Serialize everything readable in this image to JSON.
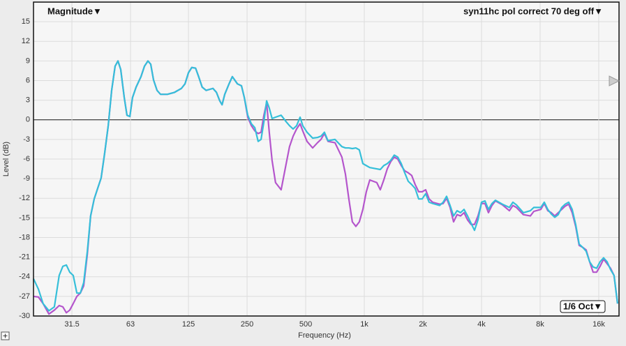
{
  "chart_data": {
    "type": "line",
    "mode_label": "Magnitude▼",
    "measurement_label": "syn11hc pol correct 70 deg off▼",
    "smoothing_label": "1/6 Oct▼",
    "x_label": "Frequency (Hz)",
    "y_label": "Level (dB)",
    "log_x": true,
    "grid": true,
    "xlim": [
      20,
      20000
    ],
    "ylim": [
      -30,
      18
    ],
    "xticks": [
      31.5,
      63,
      125,
      250,
      500,
      {
        "value": 1000,
        "label": "1k"
      },
      {
        "value": 2000,
        "label": "2k"
      },
      {
        "value": 4000,
        "label": "4k"
      },
      {
        "value": 8000,
        "label": "8k"
      },
      {
        "value": 16000,
        "label": "16k"
      }
    ],
    "yticks": [
      15,
      12,
      9,
      6,
      3,
      0,
      -3,
      -6,
      -9,
      -12,
      -15,
      -18,
      -21,
      -24,
      -27,
      -30
    ],
    "x": [
      20,
      21.2,
      22.4,
      24,
      25.6,
      27.1,
      28.3,
      29.5,
      30.7,
      32,
      33.4,
      34.8,
      36.2,
      37.8,
      39.3,
      41,
      42.7,
      44.5,
      46.4,
      48.4,
      50.4,
      52.5,
      54.3,
      56.1,
      58.5,
      60.4,
      62.5,
      64.5,
      67.3,
      71.3,
      74.3,
      77.4,
      80,
      82.7,
      86.2,
      89.8,
      97.5,
      106,
      115,
      120,
      125,
      130,
      136,
      141,
      147,
      154,
      167,
      174,
      181,
      186,
      192,
      202,
      210,
      223,
      234,
      242,
      252,
      263,
      274,
      285,
      295,
      305,
      315,
      325,
      336,
      350,
      374,
      397,
      413,
      431,
      449,
      468,
      483,
      508,
      543,
      575,
      599,
      624,
      651,
      707,
      767,
      800,
      833,
      868,
      905,
      943,
      983,
      1024,
      1067,
      1159,
      1208,
      1259,
      1312,
      1367,
      1425,
      1485,
      1548,
      1613,
      1681,
      1751,
      1825,
      1902,
      1982,
      2066,
      2152,
      2244,
      2437,
      2540,
      2646,
      2758,
      2874,
      2995,
      3121,
      3253,
      3390,
      3532,
      3681,
      3836,
      3998,
      4166,
      4341,
      4524,
      4715,
      5120,
      5561,
      5796,
      6040,
      6560,
      7125,
      7425,
      8063,
      8402,
      8756,
      9125,
      9509,
      9908,
      10325,
      10760,
      11213,
      11686,
      12177,
      12691,
      13226,
      13783,
      14363,
      14968,
      15599,
      16255,
      16939,
      17653,
      18397,
      19172,
      19980
    ],
    "series": [
      {
        "color": "#b455cc",
        "values": [
          -27.0,
          -27.1,
          -28.1,
          -29.7,
          -29.1,
          -28.4,
          -28.6,
          -29.5,
          -29.1,
          -28.1,
          -27.0,
          -26.5,
          -25.4,
          -20.6,
          -14.7,
          -12.1,
          -10.5,
          -8.9,
          -5.1,
          -0.9,
          4.5,
          8.2,
          9.0,
          7.7,
          3.4,
          0.7,
          0.5,
          3.4,
          5.0,
          6.6,
          8.2,
          9.0,
          8.5,
          6.1,
          4.5,
          3.9,
          3.9,
          4.2,
          4.8,
          5.5,
          7.2,
          8.0,
          7.9,
          6.6,
          5.0,
          4.5,
          4.8,
          4.2,
          2.9,
          2.3,
          3.9,
          5.5,
          6.6,
          5.5,
          5.2,
          3.4,
          0.4,
          -0.9,
          -1.7,
          -2.1,
          -1.9,
          0.7,
          2.6,
          -1.9,
          -6.2,
          -9.6,
          -10.7,
          -6.7,
          -4.1,
          -2.5,
          -1.4,
          -0.6,
          -1.7,
          -3.3,
          -4.3,
          -3.5,
          -3.0,
          -2.1,
          -3.3,
          -3.5,
          -5.7,
          -8.3,
          -12.1,
          -15.6,
          -16.3,
          -15.6,
          -13.7,
          -11.0,
          -9.2,
          -9.6,
          -10.7,
          -9.2,
          -7.5,
          -6.4,
          -5.7,
          -6.0,
          -7.0,
          -7.8,
          -8.1,
          -8.5,
          -9.9,
          -11.0,
          -11.0,
          -10.7,
          -12.1,
          -12.6,
          -12.9,
          -12.8,
          -12.0,
          -13.4,
          -15.6,
          -14.5,
          -14.7,
          -14.2,
          -15.3,
          -16.0,
          -16.0,
          -14.7,
          -12.8,
          -12.8,
          -14.2,
          -13.1,
          -12.4,
          -13.0,
          -13.9,
          -13.1,
          -13.4,
          -14.5,
          -14.7,
          -14.0,
          -13.7,
          -12.8,
          -13.9,
          -14.2,
          -14.7,
          -14.2,
          -13.7,
          -13.2,
          -12.9,
          -14.2,
          -16.3,
          -19.2,
          -19.5,
          -19.9,
          -21.7,
          -23.3,
          -23.3,
          -22.4,
          -21.3,
          -22.0,
          -22.7,
          -23.8,
          -28.1
        ]
      },
      {
        "color": "#35bfd9",
        "values": [
          -24.3,
          -25.9,
          -28.1,
          -29.2,
          -28.6,
          -23.8,
          -22.4,
          -22.2,
          -23.3,
          -23.8,
          -26.5,
          -26.5,
          -24.9,
          -20.1,
          -14.7,
          -12.1,
          -10.5,
          -8.9,
          -5.1,
          -0.9,
          4.5,
          8.2,
          9.0,
          7.7,
          3.4,
          0.7,
          0.5,
          3.4,
          5.0,
          6.6,
          8.2,
          9.0,
          8.5,
          6.1,
          4.5,
          3.9,
          3.9,
          4.2,
          4.8,
          5.5,
          7.2,
          8.0,
          7.9,
          6.6,
          5.0,
          4.5,
          4.8,
          4.2,
          2.9,
          2.3,
          3.9,
          5.5,
          6.6,
          5.5,
          5.2,
          3.4,
          0.7,
          -0.6,
          -1.2,
          -3.3,
          -3.0,
          -0.3,
          2.9,
          1.8,
          0.2,
          0.4,
          0.7,
          -0.3,
          -0.9,
          -1.4,
          -0.9,
          0.4,
          -0.9,
          -1.9,
          -2.8,
          -2.7,
          -2.5,
          -1.9,
          -3.2,
          -3.0,
          -4.1,
          -4.3,
          -4.3,
          -4.4,
          -4.3,
          -4.6,
          -6.7,
          -7.0,
          -7.3,
          -7.5,
          -7.6,
          -7.0,
          -6.7,
          -6.2,
          -5.4,
          -5.7,
          -6.7,
          -8.1,
          -9.4,
          -9.9,
          -10.5,
          -12.1,
          -12.1,
          -11.3,
          -12.6,
          -12.8,
          -13.1,
          -12.6,
          -11.7,
          -13.1,
          -14.7,
          -13.9,
          -14.2,
          -13.7,
          -14.7,
          -15.8,
          -16.9,
          -15.3,
          -12.6,
          -12.4,
          -13.7,
          -12.8,
          -12.3,
          -12.9,
          -13.4,
          -12.6,
          -13.0,
          -14.2,
          -13.9,
          -13.4,
          -13.4,
          -12.6,
          -13.7,
          -14.4,
          -14.9,
          -14.5,
          -13.4,
          -12.9,
          -12.6,
          -13.7,
          -16.0,
          -19.0,
          -19.5,
          -20.1,
          -21.7,
          -22.5,
          -22.7,
          -21.7,
          -21.1,
          -21.7,
          -22.9,
          -23.8,
          -28.1
        ]
      }
    ]
  }
}
